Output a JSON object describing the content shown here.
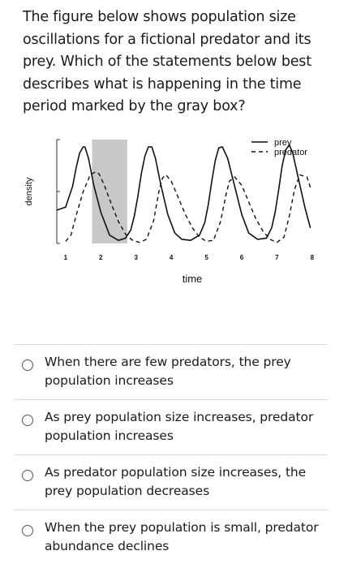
{
  "question": {
    "text": "The figure below shows population size oscillations for a fictional predator and its prey. Which of the statements below best describes what is happening in the time period marked by the gray box?"
  },
  "chart_data": {
    "type": "line",
    "xlabel": "time",
    "ylabel": "density",
    "xlim": [
      0.75,
      8.35
    ],
    "ylim": [
      0,
      1
    ],
    "x_ticks": [
      "1",
      "2",
      "3",
      "4",
      "5",
      "6",
      "7",
      "8"
    ],
    "grid": false,
    "legend_position": "top-right",
    "highlight": {
      "color": "#c8c8c8",
      "x_range": [
        1.75,
        2.75
      ]
    },
    "series": [
      {
        "name": "prey",
        "style": "solid",
        "color": "#111111",
        "x": [
          0.75,
          1.0,
          1.2,
          1.3,
          1.4,
          1.5,
          1.55,
          1.65,
          1.8,
          2.0,
          2.25,
          2.5,
          2.7,
          2.85,
          2.95,
          3.05,
          3.15,
          3.25,
          3.35,
          3.45,
          3.55,
          3.7,
          3.9,
          4.1,
          4.3,
          4.55,
          4.8,
          4.95,
          5.05,
          5.15,
          5.25,
          5.35,
          5.45,
          5.6,
          5.8,
          6.0,
          6.2,
          6.45,
          6.7,
          6.85,
          6.95,
          7.05,
          7.15,
          7.25,
          7.35,
          7.45,
          7.6,
          7.8,
          7.95
        ],
        "y": [
          0.32,
          0.35,
          0.55,
          0.73,
          0.87,
          0.93,
          0.93,
          0.82,
          0.56,
          0.3,
          0.08,
          0.03,
          0.05,
          0.13,
          0.26,
          0.45,
          0.67,
          0.84,
          0.93,
          0.93,
          0.82,
          0.57,
          0.28,
          0.1,
          0.04,
          0.03,
          0.08,
          0.2,
          0.37,
          0.6,
          0.8,
          0.92,
          0.93,
          0.82,
          0.55,
          0.28,
          0.1,
          0.04,
          0.05,
          0.15,
          0.3,
          0.52,
          0.75,
          0.9,
          0.95,
          0.87,
          0.64,
          0.34,
          0.15
        ]
      },
      {
        "name": "predator",
        "style": "dashed",
        "color": "#111111",
        "x": [
          1.0,
          1.15,
          1.3,
          1.5,
          1.7,
          1.85,
          1.95,
          2.1,
          2.3,
          2.5,
          2.7,
          2.9,
          3.1,
          3.3,
          3.5,
          3.65,
          3.75,
          3.85,
          4.0,
          4.2,
          4.4,
          4.6,
          4.8,
          5.0,
          5.2,
          5.4,
          5.55,
          5.65,
          5.8,
          6.0,
          6.2,
          6.4,
          6.6,
          6.8,
          7.0,
          7.2,
          7.35,
          7.5,
          7.65,
          7.85,
          7.95
        ],
        "y": [
          0.02,
          0.08,
          0.27,
          0.5,
          0.66,
          0.69,
          0.67,
          0.56,
          0.38,
          0.21,
          0.09,
          0.03,
          0.01,
          0.04,
          0.22,
          0.5,
          0.63,
          0.66,
          0.6,
          0.44,
          0.28,
          0.15,
          0.06,
          0.02,
          0.03,
          0.21,
          0.46,
          0.6,
          0.64,
          0.56,
          0.4,
          0.24,
          0.12,
          0.04,
          0.01,
          0.06,
          0.26,
          0.52,
          0.66,
          0.64,
          0.54
        ]
      }
    ]
  },
  "options": [
    {
      "label": "When there are few predators, the prey population increases"
    },
    {
      "label": "As prey population size increases, predator population increases"
    },
    {
      "label": "As predator population size increases, the prey population decreases"
    },
    {
      "label": "When the prey population is small, predator abundance declines"
    }
  ]
}
